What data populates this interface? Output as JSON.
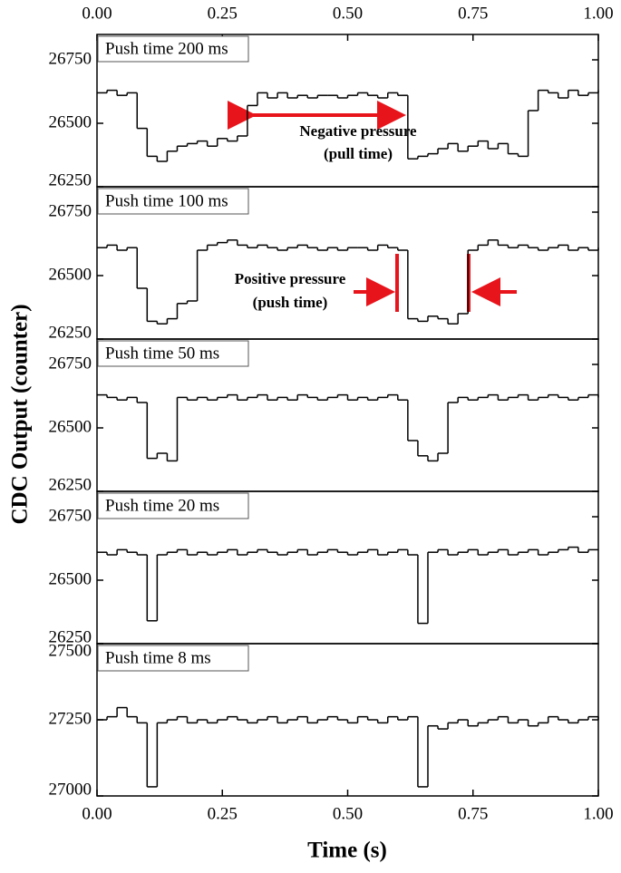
{
  "chart_data": [
    {
      "type": "line",
      "label": "Push time 200 ms",
      "color": "#000000",
      "xlim": [
        0,
        1
      ],
      "xticks": [
        {
          "value": 0,
          "label": "0.00"
        },
        {
          "value": 0.25,
          "label": "0.25"
        },
        {
          "value": 0.5,
          "label": "0.50"
        },
        {
          "value": 0.75,
          "label": "0.75"
        },
        {
          "value": 1,
          "label": "1.00"
        }
      ],
      "ylim": [
        26250,
        26850
      ],
      "yticks": [
        26250,
        26500,
        26750
      ],
      "annotations": [
        "Negative pressure",
        "(pull time)"
      ],
      "x": [
        0,
        0.02,
        0.04,
        0.06,
        0.08,
        0.1,
        0.12,
        0.14,
        0.16,
        0.18,
        0.2,
        0.22,
        0.24,
        0.26,
        0.28,
        0.3,
        0.32,
        0.34,
        0.36,
        0.38,
        0.4,
        0.42,
        0.44,
        0.46,
        0.48,
        0.5,
        0.52,
        0.54,
        0.56,
        0.58,
        0.6,
        0.62,
        0.64,
        0.66,
        0.68,
        0.7,
        0.72,
        0.74,
        0.76,
        0.78,
        0.8,
        0.82,
        0.84,
        0.86,
        0.88,
        0.9,
        0.92,
        0.94,
        0.96,
        0.98,
        1
      ],
      "values": [
        26620,
        26630,
        26610,
        26620,
        26480,
        26370,
        26350,
        26390,
        26410,
        26420,
        26430,
        26410,
        26440,
        26430,
        26450,
        26570,
        26620,
        26600,
        26620,
        26600,
        26610,
        26600,
        26610,
        26610,
        26600,
        26610,
        26620,
        26610,
        26600,
        26620,
        26610,
        26360,
        26370,
        26380,
        26400,
        26420,
        26390,
        26410,
        26430,
        26400,
        26420,
        26380,
        26370,
        26550,
        26630,
        26620,
        26600,
        26630,
        26610,
        26620,
        26630
      ]
    },
    {
      "type": "line",
      "label": "Push time 100 ms",
      "color": "#000000",
      "xlim": [
        0,
        1
      ],
      "ylim": [
        26250,
        26850
      ],
      "yticks": [
        26250,
        26500,
        26750
      ],
      "annotations": [
        "Positive pressure",
        "(push time)"
      ],
      "x": [
        0,
        0.02,
        0.04,
        0.06,
        0.08,
        0.1,
        0.12,
        0.14,
        0.16,
        0.18,
        0.2,
        0.22,
        0.24,
        0.26,
        0.28,
        0.3,
        0.32,
        0.34,
        0.36,
        0.38,
        0.4,
        0.42,
        0.44,
        0.46,
        0.48,
        0.5,
        0.52,
        0.54,
        0.56,
        0.58,
        0.6,
        0.62,
        0.64,
        0.66,
        0.68,
        0.7,
        0.72,
        0.74,
        0.76,
        0.78,
        0.8,
        0.82,
        0.84,
        0.86,
        0.88,
        0.9,
        0.92,
        0.94,
        0.96,
        0.98,
        1
      ],
      "values": [
        26610,
        26620,
        26600,
        26610,
        26450,
        26320,
        26310,
        26330,
        26390,
        26400,
        26600,
        26620,
        26630,
        26640,
        26620,
        26610,
        26620,
        26610,
        26600,
        26610,
        26620,
        26610,
        26600,
        26610,
        26600,
        26610,
        26610,
        26600,
        26620,
        26610,
        26600,
        26330,
        26320,
        26340,
        26330,
        26310,
        26350,
        26600,
        26620,
        26640,
        26620,
        26610,
        26620,
        26610,
        26600,
        26610,
        26620,
        26600,
        26610,
        26600,
        26610
      ]
    },
    {
      "type": "line",
      "label": "Push time 50 ms",
      "color": "#000000",
      "xlim": [
        0,
        1
      ],
      "ylim": [
        26250,
        26850
      ],
      "yticks": [
        26250,
        26500,
        26750
      ],
      "x": [
        0,
        0.02,
        0.04,
        0.06,
        0.08,
        0.1,
        0.12,
        0.14,
        0.16,
        0.18,
        0.2,
        0.22,
        0.24,
        0.26,
        0.28,
        0.3,
        0.32,
        0.34,
        0.36,
        0.38,
        0.4,
        0.42,
        0.44,
        0.46,
        0.48,
        0.5,
        0.52,
        0.54,
        0.56,
        0.58,
        0.6,
        0.62,
        0.64,
        0.66,
        0.68,
        0.7,
        0.72,
        0.74,
        0.76,
        0.78,
        0.8,
        0.82,
        0.84,
        0.86,
        0.88,
        0.9,
        0.92,
        0.94,
        0.96,
        0.98,
        1
      ],
      "values": [
        26630,
        26620,
        26610,
        26620,
        26600,
        26380,
        26400,
        26370,
        26620,
        26610,
        26620,
        26610,
        26620,
        26630,
        26610,
        26620,
        26630,
        26610,
        26620,
        26610,
        26630,
        26620,
        26610,
        26620,
        26630,
        26610,
        26620,
        26610,
        26620,
        26630,
        26610,
        26450,
        26390,
        26370,
        26400,
        26600,
        26620,
        26610,
        26620,
        26630,
        26610,
        26620,
        26630,
        26610,
        26620,
        26630,
        26620,
        26610,
        26620,
        26630,
        26620
      ]
    },
    {
      "type": "line",
      "label": "Push time 20 ms",
      "color": "#000000",
      "xlim": [
        0,
        1
      ],
      "ylim": [
        26250,
        26850
      ],
      "yticks": [
        26250,
        26500,
        26750
      ],
      "x": [
        0,
        0.02,
        0.04,
        0.06,
        0.08,
        0.1,
        0.12,
        0.14,
        0.16,
        0.18,
        0.2,
        0.22,
        0.24,
        0.26,
        0.28,
        0.3,
        0.32,
        0.34,
        0.36,
        0.38,
        0.4,
        0.42,
        0.44,
        0.46,
        0.48,
        0.5,
        0.52,
        0.54,
        0.56,
        0.58,
        0.6,
        0.62,
        0.64,
        0.66,
        0.68,
        0.7,
        0.72,
        0.74,
        0.76,
        0.78,
        0.8,
        0.82,
        0.84,
        0.86,
        0.88,
        0.9,
        0.92,
        0.94,
        0.96,
        0.98,
        1
      ],
      "values": [
        26610,
        26600,
        26620,
        26610,
        26600,
        26340,
        26600,
        26610,
        26620,
        26600,
        26610,
        26600,
        26610,
        26620,
        26600,
        26610,
        26620,
        26610,
        26600,
        26610,
        26620,
        26600,
        26610,
        26620,
        26610,
        26600,
        26610,
        26620,
        26600,
        26610,
        26620,
        26600,
        26330,
        26610,
        26620,
        26600,
        26610,
        26620,
        26600,
        26610,
        26620,
        26600,
        26610,
        26620,
        26600,
        26610,
        26620,
        26630,
        26610,
        26620,
        26620
      ]
    },
    {
      "type": "line",
      "label": "Push time 8 ms",
      "color": "#000000",
      "xlim": [
        0,
        1
      ],
      "xticks": [
        {
          "value": 0,
          "label": "0.00"
        },
        {
          "value": 0.25,
          "label": "0.25"
        },
        {
          "value": 0.5,
          "label": "0.50"
        },
        {
          "value": 0.75,
          "label": "0.75"
        },
        {
          "value": 1,
          "label": "1.00"
        }
      ],
      "ylim": [
        27000,
        27500
      ],
      "yticks": [
        27000,
        27250,
        27500
      ],
      "x": [
        0,
        0.02,
        0.04,
        0.06,
        0.08,
        0.1,
        0.12,
        0.14,
        0.16,
        0.18,
        0.2,
        0.22,
        0.24,
        0.26,
        0.28,
        0.3,
        0.32,
        0.34,
        0.36,
        0.38,
        0.4,
        0.42,
        0.44,
        0.46,
        0.48,
        0.5,
        0.52,
        0.54,
        0.56,
        0.58,
        0.6,
        0.62,
        0.64,
        0.66,
        0.68,
        0.7,
        0.72,
        0.74,
        0.76,
        0.78,
        0.8,
        0.82,
        0.84,
        0.86,
        0.88,
        0.9,
        0.92,
        0.94,
        0.96,
        0.98,
        1
      ],
      "values": [
        27250,
        27260,
        27290,
        27260,
        27240,
        27030,
        27240,
        27250,
        27260,
        27240,
        27250,
        27240,
        27250,
        27260,
        27250,
        27240,
        27250,
        27260,
        27240,
        27250,
        27260,
        27240,
        27250,
        27260,
        27250,
        27240,
        27260,
        27250,
        27240,
        27260,
        27250,
        27260,
        27030,
        27230,
        27220,
        27240,
        27250,
        27230,
        27240,
        27250,
        27260,
        27240,
        27250,
        27230,
        27240,
        27260,
        27250,
        27240,
        27250,
        27260,
        27250
      ]
    }
  ],
  "xlabel": "Time (s)",
  "ylabel": "CDC Output (counter)"
}
